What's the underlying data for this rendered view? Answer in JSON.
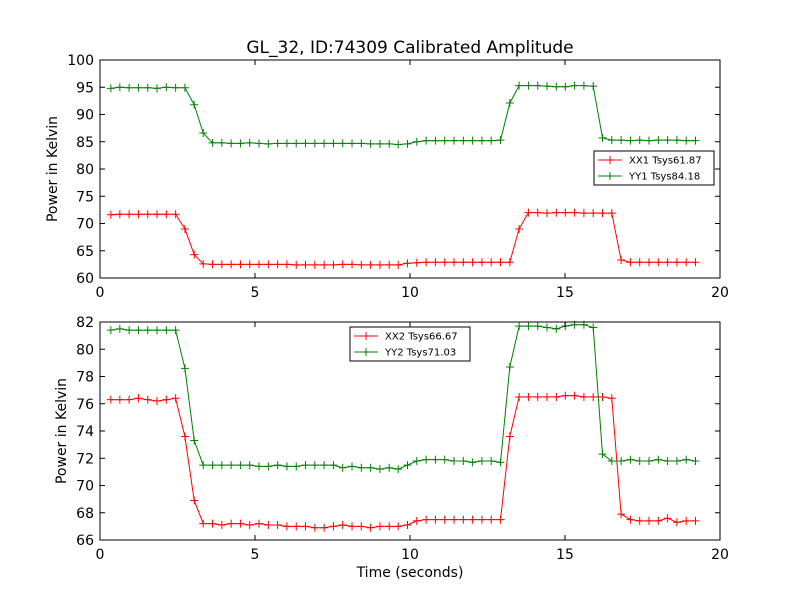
{
  "chart_data": [
    {
      "type": "line",
      "title": "GL_32, ID:74309 Calibrated Amplitude",
      "xlabel": "",
      "ylabel": "Power in Kelvin",
      "xlim": [
        0,
        20
      ],
      "ylim": [
        60,
        100
      ],
      "xticks": [
        "0",
        "5",
        "10",
        "15",
        "20"
      ],
      "yticks": [
        "60",
        "65",
        "70",
        "75",
        "80",
        "85",
        "90",
        "95",
        "100"
      ],
      "xtick_values": [
        0,
        5,
        10,
        15,
        20
      ],
      "ytick_values": [
        60,
        65,
        70,
        75,
        80,
        85,
        90,
        95,
        100
      ],
      "grid": false,
      "legend_position": "center-right",
      "x": [
        0.35,
        0.64,
        0.94,
        1.24,
        1.54,
        1.84,
        2.14,
        2.44,
        2.74,
        3.04,
        3.33,
        3.63,
        3.93,
        4.23,
        4.53,
        4.83,
        5.13,
        5.43,
        5.73,
        6.03,
        6.33,
        6.63,
        6.93,
        7.23,
        7.53,
        7.83,
        8.13,
        8.43,
        8.73,
        9.03,
        9.33,
        9.62,
        9.92,
        10.22,
        10.52,
        10.82,
        11.12,
        11.42,
        11.72,
        12.02,
        12.32,
        12.62,
        12.92,
        13.22,
        13.52,
        13.82,
        14.12,
        14.42,
        14.72,
        15.01,
        15.31,
        15.61,
        15.91,
        16.21,
        16.51,
        16.81,
        17.11,
        17.41,
        17.71,
        18.01,
        18.31,
        18.61,
        18.91,
        19.21
      ],
      "series": [
        {
          "name": "XX1 Tsys61.87",
          "color": "#ff0000",
          "values": [
            71.6,
            71.7,
            71.7,
            71.7,
            71.7,
            71.7,
            71.7,
            71.7,
            69.0,
            64.3,
            62.6,
            62.5,
            62.5,
            62.5,
            62.5,
            62.5,
            62.5,
            62.5,
            62.5,
            62.5,
            62.4,
            62.4,
            62.4,
            62.4,
            62.4,
            62.5,
            62.5,
            62.4,
            62.4,
            62.4,
            62.4,
            62.4,
            62.7,
            62.8,
            62.9,
            62.9,
            62.9,
            62.9,
            62.9,
            62.9,
            62.9,
            62.9,
            62.9,
            62.9,
            69.0,
            72.0,
            72.0,
            71.9,
            72.0,
            72.0,
            72.0,
            71.9,
            71.9,
            71.9,
            71.9,
            63.3,
            62.9,
            62.9,
            62.9,
            62.9,
            62.9,
            62.9,
            62.9,
            62.9
          ]
        },
        {
          "name": "YY1 Tsys84.18",
          "color": "#008000",
          "values": [
            94.8,
            95.0,
            94.9,
            94.9,
            94.9,
            94.8,
            95.0,
            94.9,
            94.9,
            91.8,
            86.6,
            84.8,
            84.8,
            84.7,
            84.7,
            84.8,
            84.7,
            84.6,
            84.7,
            84.7,
            84.7,
            84.7,
            84.7,
            84.7,
            84.7,
            84.7,
            84.7,
            84.7,
            84.6,
            84.6,
            84.6,
            84.5,
            84.6,
            85.0,
            85.2,
            85.2,
            85.2,
            85.2,
            85.2,
            85.2,
            85.2,
            85.2,
            85.3,
            92.1,
            95.3,
            95.3,
            95.3,
            95.2,
            95.1,
            95.1,
            95.3,
            95.3,
            95.2,
            85.7,
            85.3,
            85.3,
            85.2,
            85.3,
            85.2,
            85.3,
            85.3,
            85.3,
            85.2,
            85.2
          ]
        }
      ]
    },
    {
      "type": "line",
      "title": "",
      "xlabel": "Time (seconds)",
      "ylabel": "Power in Kelvin",
      "xlim": [
        0,
        20
      ],
      "ylim": [
        66,
        82
      ],
      "xticks": [
        "0",
        "5",
        "10",
        "15",
        "20"
      ],
      "yticks": [
        "66",
        "68",
        "70",
        "72",
        "74",
        "76",
        "78",
        "80",
        "82"
      ],
      "xtick_values": [
        0,
        5,
        10,
        15,
        20
      ],
      "ytick_values": [
        66,
        68,
        70,
        72,
        74,
        76,
        78,
        80,
        82
      ],
      "grid": false,
      "legend_position": "top-center",
      "x": [
        0.35,
        0.64,
        0.94,
        1.24,
        1.54,
        1.84,
        2.14,
        2.44,
        2.74,
        3.04,
        3.33,
        3.63,
        3.93,
        4.23,
        4.53,
        4.83,
        5.13,
        5.43,
        5.73,
        6.03,
        6.33,
        6.63,
        6.93,
        7.23,
        7.53,
        7.83,
        8.13,
        8.43,
        8.73,
        9.03,
        9.33,
        9.62,
        9.92,
        10.22,
        10.52,
        10.82,
        11.12,
        11.42,
        11.72,
        12.02,
        12.32,
        12.62,
        12.92,
        13.22,
        13.52,
        13.82,
        14.12,
        14.42,
        14.72,
        15.01,
        15.31,
        15.61,
        15.91,
        16.21,
        16.51,
        16.81,
        17.11,
        17.41,
        17.71,
        18.01,
        18.31,
        18.61,
        18.91,
        19.21
      ],
      "series": [
        {
          "name": "XX2 Tsys66.67",
          "color": "#ff0000",
          "values": [
            76.3,
            76.3,
            76.3,
            76.4,
            76.3,
            76.2,
            76.3,
            76.4,
            73.6,
            68.9,
            67.2,
            67.2,
            67.1,
            67.2,
            67.2,
            67.1,
            67.2,
            67.1,
            67.1,
            67.0,
            67.0,
            67.0,
            66.9,
            66.9,
            67.0,
            67.1,
            67.0,
            67.0,
            66.9,
            67.0,
            67.0,
            67.0,
            67.1,
            67.4,
            67.5,
            67.5,
            67.5,
            67.5,
            67.5,
            67.5,
            67.5,
            67.5,
            67.5,
            73.6,
            76.5,
            76.5,
            76.5,
            76.5,
            76.5,
            76.6,
            76.6,
            76.5,
            76.5,
            76.5,
            76.4,
            67.9,
            67.5,
            67.4,
            67.4,
            67.4,
            67.6,
            67.3,
            67.4,
            67.4
          ]
        },
        {
          "name": "YY2 Tsys71.03",
          "color": "#008000",
          "values": [
            81.4,
            81.5,
            81.4,
            81.4,
            81.4,
            81.4,
            81.4,
            81.4,
            78.6,
            73.3,
            71.5,
            71.5,
            71.5,
            71.5,
            71.5,
            71.5,
            71.4,
            71.4,
            71.5,
            71.4,
            71.4,
            71.5,
            71.5,
            71.5,
            71.5,
            71.3,
            71.4,
            71.3,
            71.3,
            71.2,
            71.3,
            71.2,
            71.5,
            71.8,
            71.9,
            71.9,
            71.9,
            71.8,
            71.8,
            71.7,
            71.8,
            71.8,
            71.7,
            78.7,
            81.7,
            81.7,
            81.7,
            81.6,
            81.5,
            81.7,
            81.8,
            81.8,
            81.6,
            72.3,
            71.8,
            71.8,
            71.9,
            71.8,
            71.8,
            71.9,
            71.8,
            71.8,
            71.9,
            71.8
          ]
        }
      ]
    }
  ]
}
